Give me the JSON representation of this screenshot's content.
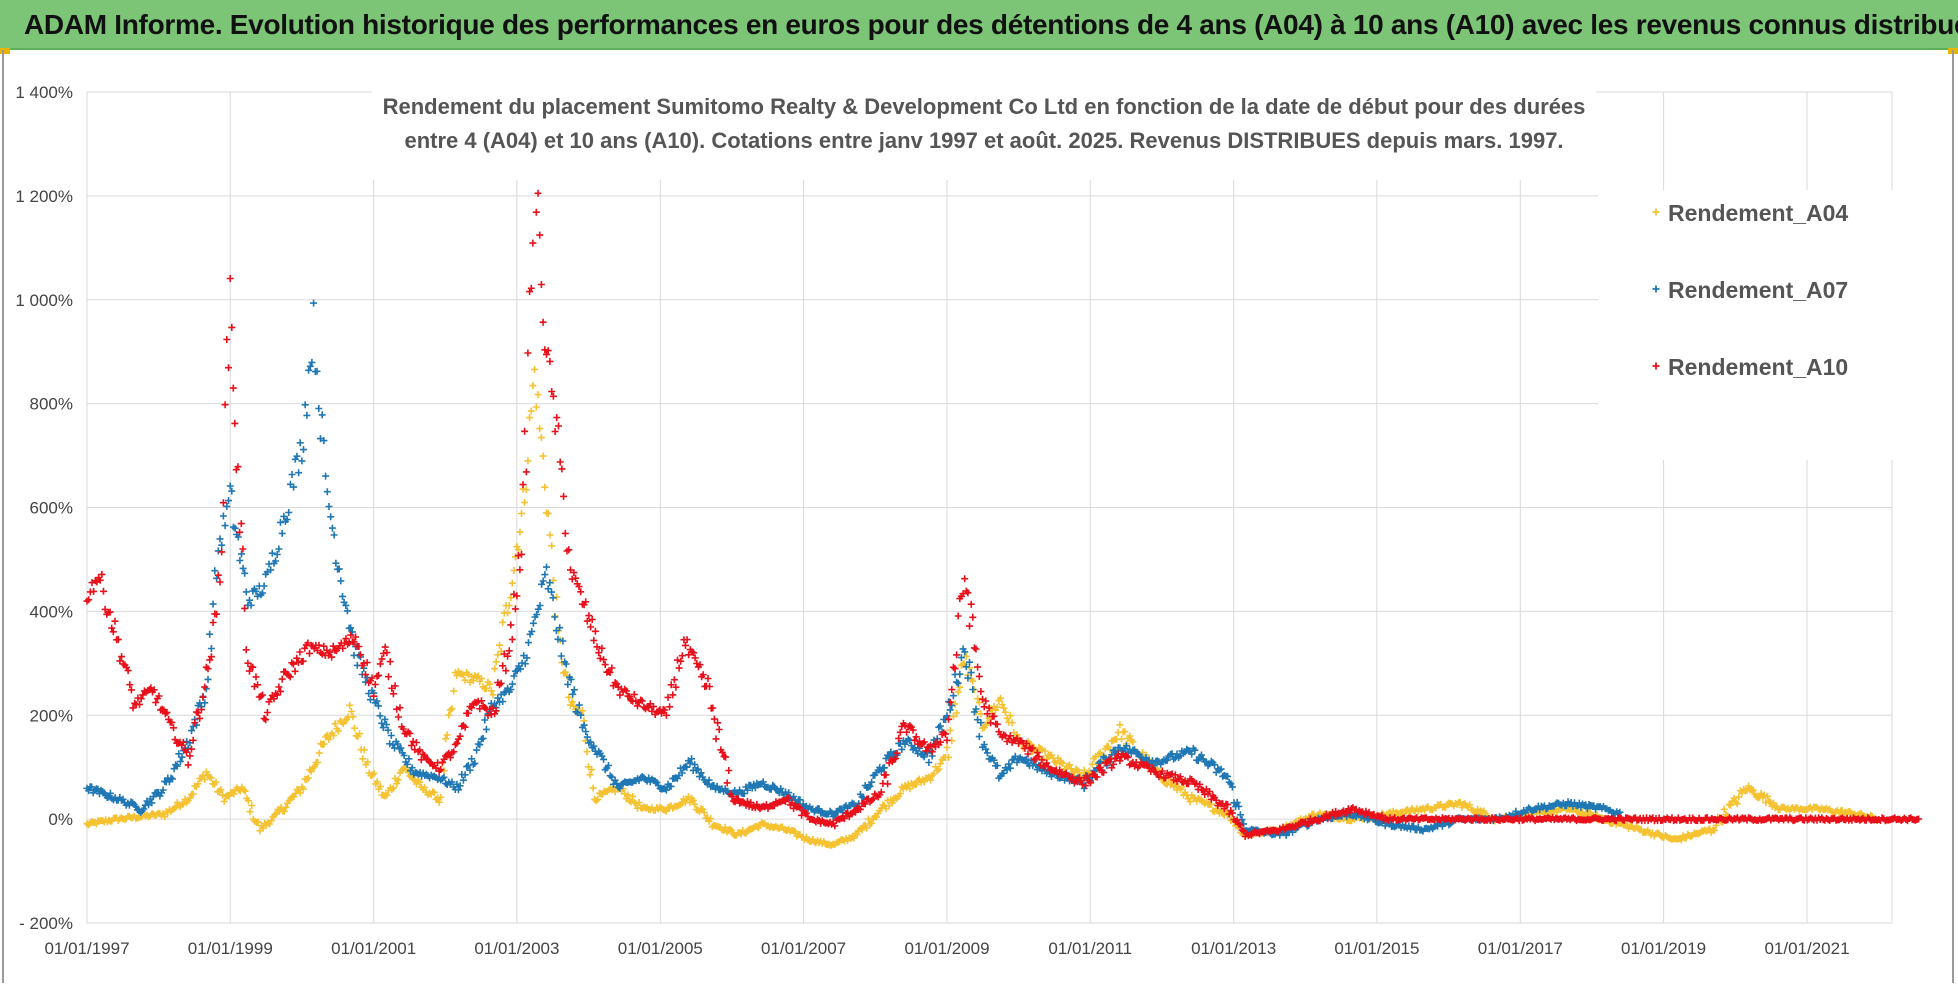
{
  "header": {
    "title": "ADAM Informe. Evolution historique des performances en euros pour des détentions de 4 ans (A04) à 10 ans (A10) avec les revenus connus distribués"
  },
  "chart_data": {
    "type": "scatter",
    "title_line1": "Rendement du placement Sumitomo Realty & Development Co Ltd en fonction de la date de début pour des durées",
    "title_line2": "entre 4 (A04) et 10 ans (A10). Cotations entre janv 1997 et août. 2025. Revenus DISTRIBUES depuis mars. 1997.",
    "xlabel": "",
    "ylabel": "",
    "x_ticks": [
      "01/01/1997",
      "01/01/1999",
      "01/01/2001",
      "01/01/2003",
      "01/01/2005",
      "01/01/2007",
      "01/01/2009",
      "01/01/2011",
      "01/01/2013",
      "01/01/2015",
      "01/01/2017",
      "01/01/2019",
      "01/01/2021"
    ],
    "y_ticks": [
      "- 200%",
      "0%",
      "200%",
      "400%",
      "600%",
      "800%",
      "1 000%",
      "1 200%",
      "1 400%"
    ],
    "ylim": [
      -200,
      1400
    ],
    "xlim": [
      "01/01/1997",
      "01/08/2022"
    ],
    "grid": true,
    "legend_position": "top-right",
    "colors": {
      "A04": "#f5c231",
      "A07": "#1f77b4",
      "A10": "#e8101a"
    },
    "series": [
      {
        "name": "Rendement_A04",
        "key": "A04",
        "points": [
          [
            "1997-01-01",
            -10
          ],
          [
            "1997-06-01",
            0
          ],
          [
            "1997-10-01",
            5
          ],
          [
            "1998-02-01",
            10
          ],
          [
            "1998-06-01",
            40
          ],
          [
            "1998-09-01",
            90
          ],
          [
            "1998-12-01",
            40
          ],
          [
            "1999-03-01",
            60
          ],
          [
            "1999-06-01",
            -20
          ],
          [
            "1999-09-01",
            10
          ],
          [
            "2000-01-01",
            60
          ],
          [
            "2000-05-01",
            150
          ],
          [
            "2000-09-01",
            210
          ],
          [
            "2000-12-01",
            100
          ],
          [
            "2001-03-01",
            40
          ],
          [
            "2001-06-01",
            100
          ],
          [
            "2001-09-01",
            60
          ],
          [
            "2001-12-01",
            40
          ],
          [
            "2002-03-01",
            280
          ],
          [
            "2002-06-01",
            270
          ],
          [
            "2002-09-01",
            250
          ],
          [
            "2002-12-01",
            450
          ],
          [
            "2003-02-01",
            600
          ],
          [
            "2003-04-01",
            860
          ],
          [
            "2003-06-01",
            620
          ],
          [
            "2003-08-01",
            350
          ],
          [
            "2003-10-01",
            220
          ],
          [
            "2003-12-01",
            200
          ],
          [
            "2004-02-01",
            40
          ],
          [
            "2004-06-01",
            60
          ],
          [
            "2004-10-01",
            20
          ],
          [
            "2005-02-01",
            20
          ],
          [
            "2005-06-01",
            40
          ],
          [
            "2005-10-01",
            -10
          ],
          [
            "2006-02-01",
            -30
          ],
          [
            "2006-06-01",
            -10
          ],
          [
            "2006-10-01",
            -20
          ],
          [
            "2007-02-01",
            -40
          ],
          [
            "2007-06-01",
            -50
          ],
          [
            "2007-10-01",
            -30
          ],
          [
            "2008-02-01",
            20
          ],
          [
            "2008-06-01",
            60
          ],
          [
            "2008-10-01",
            80
          ],
          [
            "2009-01-01",
            120
          ],
          [
            "2009-04-01",
            310
          ],
          [
            "2009-07-01",
            180
          ],
          [
            "2009-10-01",
            230
          ],
          [
            "2010-01-01",
            150
          ],
          [
            "2010-06-01",
            120
          ],
          [
            "2010-12-01",
            80
          ],
          [
            "2011-06-01",
            170
          ],
          [
            "2011-12-01",
            90
          ],
          [
            "2012-06-01",
            40
          ],
          [
            "2012-12-01",
            10
          ],
          [
            "2013-03-01",
            -30
          ],
          [
            "2013-09-01",
            -20
          ],
          [
            "2014-03-01",
            10
          ],
          [
            "2014-09-01",
            0
          ],
          [
            "2015-03-01",
            10
          ],
          [
            "2015-09-01",
            20
          ],
          [
            "2016-03-01",
            30
          ],
          [
            "2016-09-01",
            0
          ],
          [
            "2017-03-01",
            10
          ],
          [
            "2017-09-01",
            20
          ],
          [
            "2018-03-01",
            0
          ],
          [
            "2018-09-01",
            -20
          ],
          [
            "2019-03-01",
            -40
          ],
          [
            "2019-09-01",
            -20
          ],
          [
            "2020-03-01",
            60
          ],
          [
            "2020-09-01",
            20
          ],
          [
            "2021-03-01",
            20
          ],
          [
            "2021-09-01",
            10
          ],
          [
            "2022-01-01",
            0
          ]
        ]
      },
      {
        "name": "Rendement_A07",
        "key": "A07",
        "points": [
          [
            "1997-01-01",
            60
          ],
          [
            "1997-06-01",
            40
          ],
          [
            "1997-10-01",
            20
          ],
          [
            "1998-02-01",
            60
          ],
          [
            "1998-06-01",
            150
          ],
          [
            "1998-09-01",
            250
          ],
          [
            "1998-11-01",
            520
          ],
          [
            "1999-01-01",
            620
          ],
          [
            "1999-04-01",
            420
          ],
          [
            "1999-07-01",
            450
          ],
          [
            "1999-10-01",
            580
          ],
          [
            "2000-01-01",
            720
          ],
          [
            "2000-03-01",
            950
          ],
          [
            "2000-05-01",
            650
          ],
          [
            "2000-07-01",
            500
          ],
          [
            "2000-10-01",
            320
          ],
          [
            "2001-01-01",
            230
          ],
          [
            "2001-04-01",
            150
          ],
          [
            "2001-08-01",
            90
          ],
          [
            "2001-12-01",
            80
          ],
          [
            "2002-03-01",
            60
          ],
          [
            "2002-06-01",
            120
          ],
          [
            "2002-09-01",
            220
          ],
          [
            "2002-12-01",
            250
          ],
          [
            "2003-03-01",
            330
          ],
          [
            "2003-06-01",
            470
          ],
          [
            "2003-09-01",
            300
          ],
          [
            "2003-12-01",
            180
          ],
          [
            "2004-03-01",
            120
          ],
          [
            "2004-06-01",
            60
          ],
          [
            "2004-10-01",
            80
          ],
          [
            "2005-02-01",
            60
          ],
          [
            "2005-06-01",
            110
          ],
          [
            "2005-10-01",
            60
          ],
          [
            "2006-02-01",
            50
          ],
          [
            "2006-06-01",
            70
          ],
          [
            "2006-10-01",
            50
          ],
          [
            "2007-02-01",
            20
          ],
          [
            "2007-06-01",
            10
          ],
          [
            "2007-10-01",
            30
          ],
          [
            "2008-02-01",
            100
          ],
          [
            "2008-06-01",
            150
          ],
          [
            "2008-10-01",
            120
          ],
          [
            "2009-01-01",
            200
          ],
          [
            "2009-04-01",
            330
          ],
          [
            "2009-07-01",
            150
          ],
          [
            "2009-10-01",
            80
          ],
          [
            "2010-01-01",
            120
          ],
          [
            "2010-06-01",
            90
          ],
          [
            "2010-12-01",
            70
          ],
          [
            "2011-06-01",
            140
          ],
          [
            "2011-12-01",
            110
          ],
          [
            "2012-06-01",
            130
          ],
          [
            "2012-12-01",
            80
          ],
          [
            "2013-03-01",
            -20
          ],
          [
            "2013-09-01",
            -30
          ],
          [
            "2014-03-01",
            0
          ],
          [
            "2014-09-01",
            10
          ],
          [
            "2015-03-01",
            -10
          ],
          [
            "2015-09-01",
            -20
          ],
          [
            "2016-03-01",
            0
          ],
          [
            "2016-09-01",
            0
          ],
          [
            "2017-03-01",
            20
          ],
          [
            "2017-09-01",
            30
          ],
          [
            "2018-03-01",
            20
          ],
          [
            "2018-06-01",
            10
          ]
        ]
      },
      {
        "name": "Rendement_A10",
        "key": "A10",
        "points": [
          [
            "1997-01-01",
            430
          ],
          [
            "1997-03-01",
            470
          ],
          [
            "1997-06-01",
            350
          ],
          [
            "1997-09-01",
            220
          ],
          [
            "1997-12-01",
            250
          ],
          [
            "1998-03-01",
            180
          ],
          [
            "1998-06-01",
            120
          ],
          [
            "1998-09-01",
            270
          ],
          [
            "1998-11-01",
            420
          ],
          [
            "1999-01-01",
            1020
          ],
          [
            "1999-02-01",
            700
          ],
          [
            "1999-04-01",
            310
          ],
          [
            "1999-07-01",
            200
          ],
          [
            "1999-10-01",
            270
          ],
          [
            "2000-02-01",
            330
          ],
          [
            "2000-06-01",
            320
          ],
          [
            "2000-10-01",
            350
          ],
          [
            "2001-01-01",
            250
          ],
          [
            "2001-03-01",
            320
          ],
          [
            "2001-06-01",
            180
          ],
          [
            "2001-09-01",
            120
          ],
          [
            "2001-12-01",
            100
          ],
          [
            "2002-03-01",
            140
          ],
          [
            "2002-06-01",
            230
          ],
          [
            "2002-09-01",
            200
          ],
          [
            "2002-12-01",
            350
          ],
          [
            "2003-02-01",
            560
          ],
          [
            "2003-04-01",
            1250
          ],
          [
            "2003-06-01",
            900
          ],
          [
            "2003-08-01",
            720
          ],
          [
            "2003-10-01",
            480
          ],
          [
            "2003-12-01",
            420
          ],
          [
            "2004-03-01",
            320
          ],
          [
            "2004-06-01",
            250
          ],
          [
            "2004-10-01",
            220
          ],
          [
            "2005-02-01",
            200
          ],
          [
            "2005-05-01",
            340
          ],
          [
            "2005-09-01",
            250
          ],
          [
            "2006-01-01",
            40
          ],
          [
            "2006-06-01",
            20
          ],
          [
            "2006-10-01",
            40
          ],
          [
            "2007-02-01",
            0
          ],
          [
            "2007-06-01",
            -10
          ],
          [
            "2007-10-01",
            20
          ],
          [
            "2008-02-01",
            50
          ],
          [
            "2008-06-01",
            180
          ],
          [
            "2008-10-01",
            130
          ],
          [
            "2009-01-01",
            170
          ],
          [
            "2009-04-01",
            470
          ],
          [
            "2009-07-01",
            230
          ],
          [
            "2009-10-01",
            160
          ],
          [
            "2010-01-01",
            150
          ],
          [
            "2010-06-01",
            100
          ],
          [
            "2010-12-01",
            70
          ],
          [
            "2011-06-01",
            120
          ],
          [
            "2011-12-01",
            90
          ],
          [
            "2012-06-01",
            70
          ],
          [
            "2012-12-01",
            20
          ],
          [
            "2013-03-01",
            -30
          ],
          [
            "2013-09-01",
            -20
          ],
          [
            "2014-03-01",
            0
          ],
          [
            "2014-09-01",
            20
          ],
          [
            "2015-03-01",
            0
          ],
          [
            "2015-09-01",
            0
          ],
          [
            "2016-03-01",
            0
          ],
          [
            "2017-03-01",
            0
          ],
          [
            "2018-03-01",
            0
          ],
          [
            "2019-03-01",
            0
          ],
          [
            "2020-03-01",
            0
          ],
          [
            "2021-03-01",
            0
          ],
          [
            "2022-08-01",
            0
          ]
        ]
      }
    ]
  }
}
